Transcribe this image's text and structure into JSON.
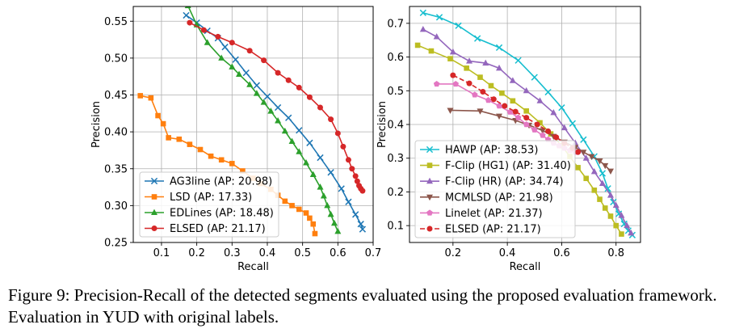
{
  "caption": "Figure 9: Precision-Recall of the detected segments evaluated using the proposed evaluation framework. Evaluation in YUD with original labels.",
  "chart_data": [
    {
      "type": "line",
      "xlabel": "Recall",
      "ylabel": "Precision",
      "xlim": [
        0.02,
        0.7
      ],
      "ylim": [
        0.25,
        0.57
      ],
      "xticks": [
        0.1,
        0.2,
        0.3,
        0.4,
        0.5,
        0.6,
        0.7
      ],
      "yticks": [
        0.25,
        0.3,
        0.35,
        0.4,
        0.45,
        0.5,
        0.55
      ],
      "xtick_labels": [
        "0.1",
        "0.2",
        "0.3",
        "0.4",
        "0.5",
        "0.6",
        "0.7"
      ],
      "ytick_labels": [
        "0.25",
        "0.30",
        "0.35",
        "0.40",
        "0.45",
        "0.50",
        "0.55"
      ],
      "grid": true,
      "legend_position": "lower-left",
      "series": [
        {
          "name": "AG3line (AP: 20.98)",
          "color": "#1f77b4",
          "marker": "x",
          "x": [
            0.17,
            0.2,
            0.23,
            0.26,
            0.28,
            0.31,
            0.34,
            0.37,
            0.4,
            0.43,
            0.46,
            0.49,
            0.52,
            0.55,
            0.58,
            0.61,
            0.63,
            0.65,
            0.665,
            0.67
          ],
          "y": [
            0.558,
            0.548,
            0.537,
            0.527,
            0.515,
            0.498,
            0.48,
            0.463,
            0.448,
            0.433,
            0.419,
            0.402,
            0.385,
            0.365,
            0.345,
            0.323,
            0.305,
            0.288,
            0.275,
            0.268
          ]
        },
        {
          "name": "LSD (AP: 17.33)",
          "color": "#ff7f0e",
          "marker": "square",
          "x": [
            0.04,
            0.07,
            0.09,
            0.105,
            0.12,
            0.15,
            0.18,
            0.21,
            0.24,
            0.27,
            0.3,
            0.33,
            0.36,
            0.38,
            0.41,
            0.43,
            0.45,
            0.47,
            0.49,
            0.51,
            0.52,
            0.53,
            0.535
          ],
          "y": [
            0.449,
            0.446,
            0.422,
            0.411,
            0.392,
            0.39,
            0.383,
            0.376,
            0.367,
            0.362,
            0.357,
            0.347,
            0.337,
            0.33,
            0.322,
            0.314,
            0.306,
            0.3,
            0.295,
            0.29,
            0.283,
            0.275,
            0.262
          ]
        },
        {
          "name": "EDLines (AP: 18.48)",
          "color": "#2ca02c",
          "marker": "triangle",
          "x": [
            0.175,
            0.2,
            0.23,
            0.27,
            0.3,
            0.32,
            0.35,
            0.37,
            0.39,
            0.41,
            0.43,
            0.45,
            0.47,
            0.49,
            0.51,
            0.53,
            0.55,
            0.56,
            0.57,
            0.58,
            0.59,
            0.6
          ],
          "y": [
            0.571,
            0.545,
            0.521,
            0.5,
            0.488,
            0.478,
            0.464,
            0.452,
            0.44,
            0.428,
            0.415,
            0.401,
            0.387,
            0.373,
            0.358,
            0.342,
            0.325,
            0.313,
            0.3,
            0.288,
            0.276,
            0.265
          ]
        },
        {
          "name": "ELSED (AP: 21.17)",
          "color": "#d62728",
          "marker": "circle",
          "x": [
            0.18,
            0.22,
            0.26,
            0.3,
            0.35,
            0.39,
            0.43,
            0.46,
            0.49,
            0.52,
            0.55,
            0.58,
            0.6,
            0.615,
            0.63,
            0.64,
            0.65,
            0.655,
            0.66,
            0.665,
            0.67
          ],
          "y": [
            0.548,
            0.538,
            0.529,
            0.521,
            0.51,
            0.497,
            0.48,
            0.47,
            0.46,
            0.447,
            0.433,
            0.417,
            0.398,
            0.38,
            0.362,
            0.35,
            0.34,
            0.333,
            0.327,
            0.323,
            0.32
          ]
        }
      ]
    },
    {
      "type": "line",
      "xlabel": "Recall",
      "ylabel": "Precision",
      "xlim": [
        0.04,
        0.89
      ],
      "ylim": [
        0.05,
        0.75
      ],
      "xticks": [
        0.2,
        0.4,
        0.6,
        0.8
      ],
      "yticks": [
        0.1,
        0.2,
        0.3,
        0.4,
        0.5,
        0.6,
        0.7
      ],
      "xtick_labels": [
        "0.2",
        "0.4",
        "0.6",
        "0.8"
      ],
      "ytick_labels": [
        "0.1",
        "0.2",
        "0.3",
        "0.4",
        "0.5",
        "0.6",
        "0.7"
      ],
      "grid": true,
      "legend_position": "lower-left",
      "series": [
        {
          "name": "HAWP (AP: 38.53)",
          "color": "#17becf",
          "marker": "x",
          "x": [
            0.09,
            0.15,
            0.22,
            0.29,
            0.37,
            0.44,
            0.5,
            0.55,
            0.6,
            0.64,
            0.68,
            0.72,
            0.75,
            0.77,
            0.79,
            0.81,
            0.83,
            0.845,
            0.86
          ],
          "y": [
            0.731,
            0.718,
            0.693,
            0.655,
            0.628,
            0.59,
            0.54,
            0.496,
            0.45,
            0.403,
            0.355,
            0.305,
            0.255,
            0.21,
            0.17,
            0.135,
            0.105,
            0.085,
            0.072
          ]
        },
        {
          "name": "F-Clip (HG1) (AP: 31.40)",
          "color": "#bcbd22",
          "marker": "square",
          "x": [
            0.07,
            0.12,
            0.19,
            0.25,
            0.3,
            0.34,
            0.38,
            0.42,
            0.47,
            0.52,
            0.56,
            0.6,
            0.63,
            0.66,
            0.69,
            0.72,
            0.74,
            0.76,
            0.78,
            0.8,
            0.82
          ],
          "y": [
            0.635,
            0.618,
            0.595,
            0.567,
            0.54,
            0.515,
            0.493,
            0.47,
            0.44,
            0.405,
            0.372,
            0.337,
            0.305,
            0.272,
            0.24,
            0.205,
            0.178,
            0.152,
            0.128,
            0.1,
            0.075
          ]
        },
        {
          "name": "F-Clip (HR) (AP: 34.74)",
          "color": "#9467bd",
          "marker": "triangle",
          "x": [
            0.09,
            0.14,
            0.2,
            0.26,
            0.32,
            0.37,
            0.42,
            0.47,
            0.52,
            0.57,
            0.61,
            0.65,
            0.69,
            0.72,
            0.75,
            0.78,
            0.8,
            0.82,
            0.84,
            0.855
          ],
          "y": [
            0.682,
            0.66,
            0.615,
            0.588,
            0.582,
            0.567,
            0.53,
            0.5,
            0.47,
            0.435,
            0.39,
            0.345,
            0.3,
            0.26,
            0.225,
            0.19,
            0.16,
            0.13,
            0.1,
            0.078
          ]
        },
        {
          "name": "MCMLSD (AP: 21.98)",
          "color": "#8c564b",
          "marker": "triangle-down",
          "x": [
            0.19,
            0.3,
            0.37,
            0.43,
            0.48,
            0.53,
            0.57,
            0.61,
            0.65,
            0.68,
            0.71,
            0.74,
            0.76,
            0.78
          ],
          "y": [
            0.442,
            0.44,
            0.425,
            0.412,
            0.398,
            0.382,
            0.365,
            0.348,
            0.332,
            0.318,
            0.305,
            0.292,
            0.278,
            0.262
          ]
        },
        {
          "name": "Linelet (AP: 21.37)",
          "color": "#e377c2",
          "marker": "pentagon",
          "x": [
            0.14,
            0.21,
            0.28,
            0.33,
            0.37,
            0.41,
            0.44,
            0.47,
            0.5,
            0.53,
            0.55,
            0.57,
            0.59,
            0.61,
            0.63,
            0.65
          ],
          "y": [
            0.52,
            0.52,
            0.488,
            0.472,
            0.455,
            0.437,
            0.42,
            0.4,
            0.384,
            0.368,
            0.355,
            0.345,
            0.337,
            0.33,
            0.323,
            0.318
          ]
        },
        {
          "name": "ELSED (AP: 21.17)",
          "color": "#d62728",
          "marker": "circle",
          "dashed": true,
          "x": [
            0.2,
            0.26,
            0.31,
            0.35,
            0.39,
            0.43,
            0.47,
            0.51,
            0.55,
            0.58,
            0.61,
            0.64,
            0.66
          ],
          "y": [
            0.546,
            0.522,
            0.497,
            0.475,
            0.455,
            0.438,
            0.42,
            0.4,
            0.38,
            0.362,
            0.345,
            0.33,
            0.318
          ]
        }
      ]
    }
  ]
}
